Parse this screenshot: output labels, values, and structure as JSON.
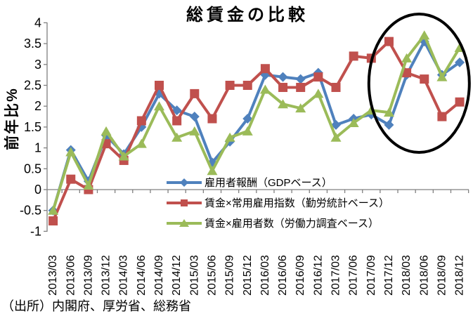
{
  "source_note": "（出所）内閣府、厚労省、総務省",
  "chart_data": {
    "type": "line",
    "title": "総賃金の比較",
    "ylabel": "前年比%",
    "xlabel": "",
    "ylim": [
      -1,
      4
    ],
    "ytick_step": 0.5,
    "y_tick_labels": [
      "4",
      "3.5",
      "3",
      "2.5",
      "2",
      "1.5",
      "1",
      "0.5",
      "0",
      "-0.5",
      "-1"
    ],
    "grid": false,
    "legend_position": "inside-lower-center",
    "axis_color": "#808080",
    "text_color": "#000000",
    "categories": [
      "2013/03",
      "2013/06",
      "2013/09",
      "2013/12",
      "2014/03",
      "2014/06",
      "2014/09",
      "2014/12",
      "2015/03",
      "2015/06",
      "2015/09",
      "2015/12",
      "2016/03",
      "2016/06",
      "2016/09",
      "2016/12",
      "2017/03",
      "2017/06",
      "2017/09",
      "2017/12",
      "2018/03",
      "2018/06",
      "2018/09",
      "2018/12"
    ],
    "series": [
      {
        "name": "雇用者報酬（GDPベース）",
        "color": "#4F81BD",
        "marker": "diamond",
        "values": [
          -0.5,
          0.95,
          0.2,
          1.3,
          0.85,
          1.5,
          2.3,
          1.9,
          1.75,
          0.65,
          1.15,
          1.7,
          2.75,
          2.7,
          2.65,
          2.8,
          1.55,
          1.7,
          1.8,
          1.55,
          2.75,
          3.55,
          2.75,
          3.05
        ]
      },
      {
        "name": "賃金×常用雇用指数（勤労統計ベース）",
        "color": "#C0504D",
        "marker": "square",
        "values": [
          -0.75,
          0.25,
          0,
          1.1,
          0.7,
          1.65,
          2.5,
          1.65,
          2.3,
          1.7,
          2.5,
          2.5,
          2.9,
          2.45,
          2.45,
          2.7,
          2.45,
          3.2,
          3.15,
          3.55,
          2.8,
          2.65,
          1.75,
          2.1
        ]
      },
      {
        "name": "賃金×雇用者数（労働力調査ベース）",
        "color": "#9BBB59",
        "marker": "triangle",
        "values": [
          -0.5,
          0.9,
          0.1,
          1.4,
          0.8,
          1.1,
          2.0,
          1.25,
          1.4,
          0.45,
          1.25,
          1.4,
          2.4,
          2.05,
          1.95,
          2.3,
          1.25,
          1.6,
          1.9,
          1.85,
          3.15,
          3.7,
          2.7,
          3.4
        ]
      }
    ],
    "annotation": {
      "shape": "ellipse",
      "color": "#000000",
      "from_category": "2017/12",
      "to_category": "2018/12"
    }
  }
}
